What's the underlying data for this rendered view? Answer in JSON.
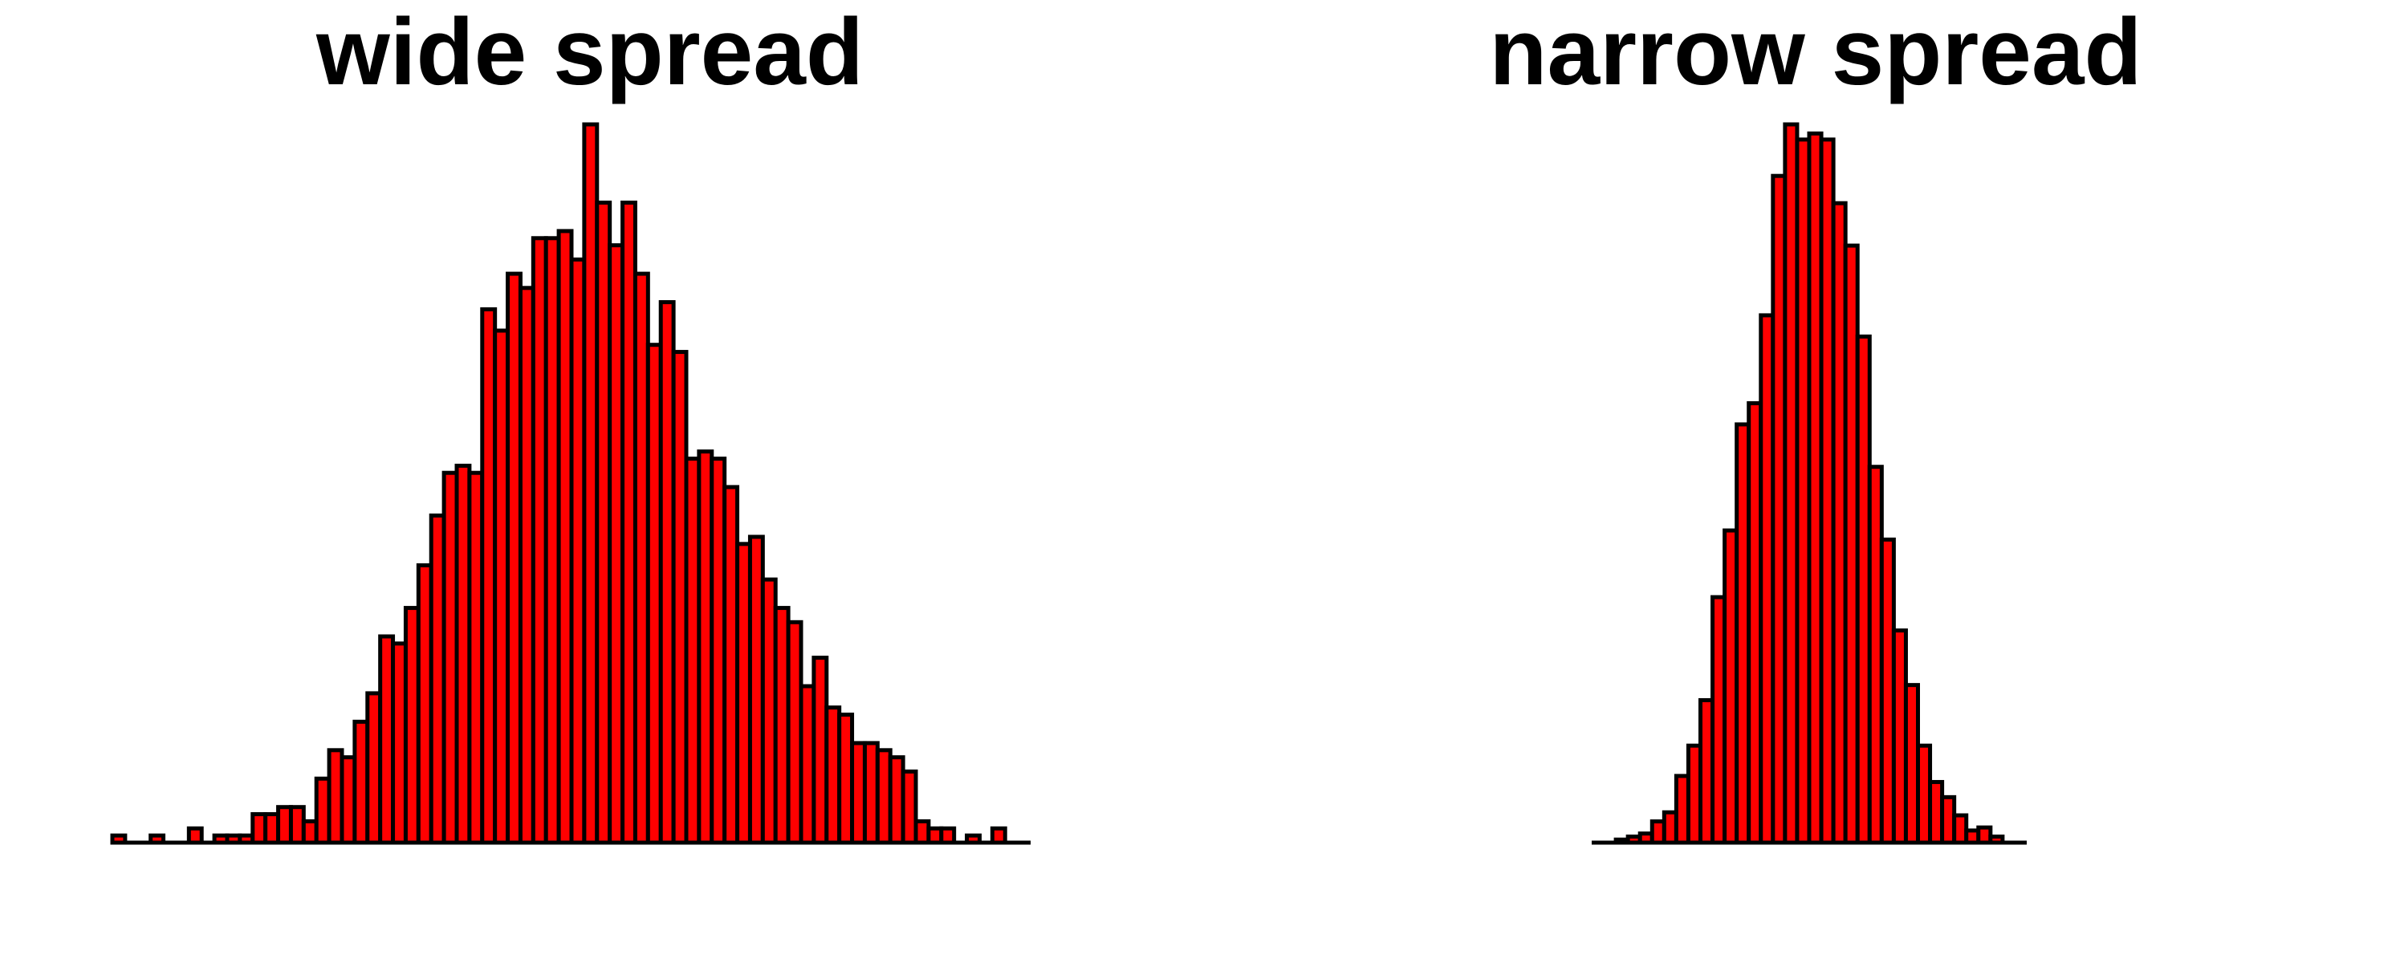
{
  "bar_color": "#ff0000",
  "outline_color": "#000000",
  "chart_data": [
    {
      "type": "bar",
      "title": "wide spread",
      "xlabel": "",
      "ylabel": "",
      "grid": false,
      "axes_visible": false,
      "values": [
        1,
        0,
        0,
        1,
        0,
        0,
        2,
        0,
        1,
        1,
        1,
        4,
        4,
        5,
        5,
        3,
        9,
        13,
        12,
        17,
        21,
        29,
        28,
        33,
        39,
        46,
        52,
        53,
        52,
        75,
        72,
        80,
        78,
        85,
        85,
        86,
        82,
        101,
        90,
        84,
        90,
        80,
        70,
        76,
        69,
        54,
        55,
        54,
        50,
        42,
        43,
        37,
        33,
        31,
        22,
        26,
        19,
        18,
        14,
        14,
        13,
        12,
        10,
        3,
        2,
        2,
        0,
        1,
        0,
        2,
        0,
        0
      ],
      "ylim": [
        0,
        101
      ]
    },
    {
      "type": "bar",
      "title": "narrow spread",
      "xlabel": "",
      "ylabel": "",
      "grid": false,
      "axes_visible": false,
      "values": [
        0,
        0,
        1,
        2,
        3,
        7,
        10,
        22,
        32,
        47,
        81,
        103,
        138,
        145,
        174,
        220,
        237,
        232,
        234,
        232,
        211,
        197,
        167,
        124,
        100,
        70,
        52,
        32,
        20,
        15,
        9,
        4,
        5,
        2,
        0,
        0
      ],
      "ylim": [
        0,
        237
      ]
    }
  ]
}
